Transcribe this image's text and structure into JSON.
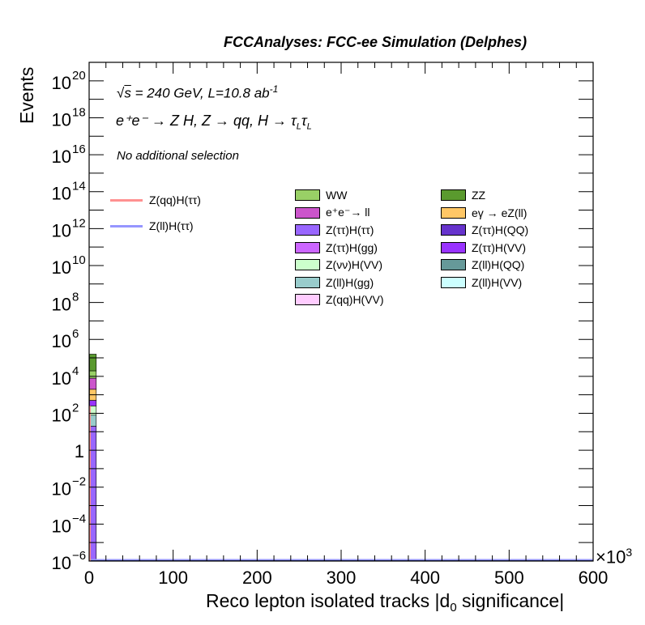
{
  "banner": "FCCAnalyses: FCC-ee Simulation (Delphes)",
  "annotations": {
    "sqrt_s": "s",
    "energy_lumi": " = 240 GeV, L=10.8 ab",
    "lumi_exp": "-1",
    "process": "e⁺e⁻ → Z H, Z → qq, H → τ",
    "tau_sub": "L",
    "selection": "No additional selection"
  },
  "axis_scale_label": "×10",
  "axis_scale_exp": "3",
  "chart_data": {
    "type": "bar",
    "stacked": true,
    "log_y": true,
    "xlabel_main": "Reco lepton isolated tracks |d",
    "xlabel_sub": "0",
    "xlabel_tail": " significance|",
    "ylabel": "Events",
    "xlim": [
      0,
      600
    ],
    "ylim_exp": [
      -6,
      21
    ],
    "x_ticks": [
      "0",
      "100",
      "200",
      "300",
      "400",
      "500",
      "600"
    ],
    "y_ticks": [
      {
        "exp": -6,
        "label": "10",
        "sup": "−6"
      },
      {
        "exp": -4,
        "label": "10",
        "sup": "−4"
      },
      {
        "exp": -2,
        "label": "10",
        "sup": "−2"
      },
      {
        "exp": 0,
        "label": "1",
        "sup": ""
      },
      {
        "exp": 2,
        "label": "10",
        "sup": "2"
      },
      {
        "exp": 4,
        "label": "10",
        "sup": "4"
      },
      {
        "exp": 6,
        "label": "10",
        "sup": "6"
      },
      {
        "exp": 8,
        "label": "10",
        "sup": "8"
      },
      {
        "exp": 10,
        "label": "10",
        "sup": "10"
      },
      {
        "exp": 12,
        "label": "10",
        "sup": "12"
      },
      {
        "exp": 14,
        "label": "10",
        "sup": "14"
      },
      {
        "exp": 16,
        "label": "10",
        "sup": "16"
      },
      {
        "exp": 18,
        "label": "10",
        "sup": "18"
      },
      {
        "exp": 20,
        "label": "10",
        "sup": "20"
      }
    ],
    "signal": [
      {
        "name": "Z(qq)H(ττ)",
        "color": "#ff9191"
      },
      {
        "name": "Z(ll)H(ττ)",
        "color": "#9696ff"
      }
    ],
    "backgrounds": [
      {
        "name": "WW",
        "color": "#99d066"
      },
      {
        "name": "ZZ",
        "color": "#5a9a2e"
      },
      {
        "name": "e⁺e⁻→ ll",
        "color": "#cc55cc"
      },
      {
        "name": "eγ → eZ(ll)",
        "color": "#ffc766"
      },
      {
        "name": "Z(ττ)H(ττ)",
        "color": "#9966ff"
      },
      {
        "name": "Z(ττ)H(QQ)",
        "color": "#6633cc"
      },
      {
        "name": "Z(ττ)H(gg)",
        "color": "#cc66ff"
      },
      {
        "name": "Z(ττ)H(VV)",
        "color": "#9933ff"
      },
      {
        "name": "Z(νν)H(VV)",
        "color": "#ccffcc"
      },
      {
        "name": "Z(ll)H(QQ)",
        "color": "#669999"
      },
      {
        "name": "Z(ll)H(gg)",
        "color": "#99cccc"
      },
      {
        "name": "Z(ll)H(VV)",
        "color": "#ccffff"
      },
      {
        "name": "Z(qq)H(VV)",
        "color": "#ffccff"
      }
    ],
    "stack_first_bin": [
      {
        "color": "#9966ff",
        "lo_exp": -6,
        "hi_exp": 1.3
      },
      {
        "color": "#99cccc",
        "lo_exp": 1.3,
        "hi_exp": 1.9
      },
      {
        "color": "#ccffcc",
        "lo_exp": 1.9,
        "hi_exp": 2.4
      },
      {
        "color": "#9933ff",
        "lo_exp": 2.4,
        "hi_exp": 2.7
      },
      {
        "color": "#ffc766",
        "lo_exp": 2.7,
        "hi_exp": 3.3
      },
      {
        "color": "#cc55cc",
        "lo_exp": 3.3,
        "hi_exp": 3.9
      },
      {
        "color": "#99d066",
        "lo_exp": 3.9,
        "hi_exp": 4.3
      },
      {
        "color": "#5a9a2e",
        "lo_exp": 4.3,
        "hi_exp": 5.2
      }
    ]
  }
}
